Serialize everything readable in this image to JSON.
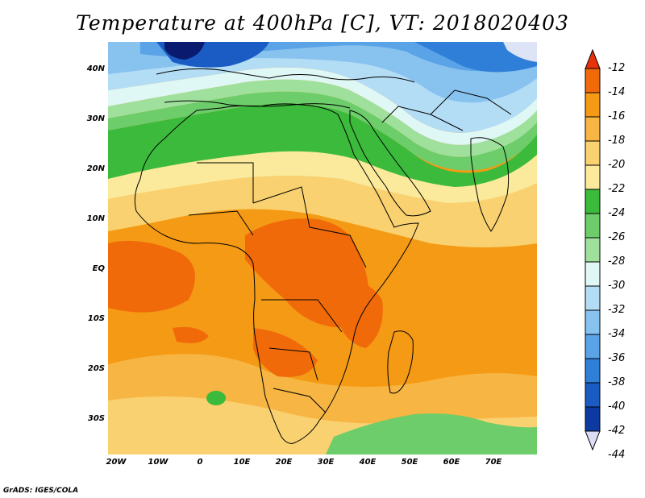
{
  "title": "Temperature at 400hPa [C], VT: 2018020403",
  "credit": "GrADS: IGES/COLA",
  "lat_ticks": [
    "40N",
    "30N",
    "20N",
    "10N",
    "EQ",
    "10S",
    "20S",
    "30S"
  ],
  "lon_ticks": [
    "20W",
    "10W",
    "0",
    "10E",
    "20E",
    "30E",
    "40E",
    "50E",
    "60E",
    "70E"
  ],
  "colorbar": {
    "labels": [
      "-12",
      "-14",
      "-16",
      "-18",
      "-20",
      "-22",
      "-24",
      "-26",
      "-28",
      "-30",
      "-32",
      "-34",
      "-36",
      "-38",
      "-40",
      "-42",
      "-44"
    ],
    "colors": [
      "#e8320a",
      "#f06a0a",
      "#f59a14",
      "#f7b543",
      "#f9d170",
      "#fbea9b",
      "#3cba3c",
      "#6ccd6a",
      "#9fe09d",
      "#dff7f5",
      "#b3dcf5",
      "#88c2ef",
      "#5aa3e6",
      "#2f7fd8",
      "#1a5cc4",
      "#0c3aa0",
      "#0a1a6e"
    ]
  },
  "colors": {
    "warm_deep": "#e8320a",
    "warm_orange": "#f06a0a",
    "warm_mid": "#f59a14",
    "warm_light": "#f7b543",
    "yellow": "#f9d170",
    "pale_yellow": "#fbea9b",
    "green_dark": "#3cba3c",
    "green_mid": "#6ccd6a",
    "green_light": "#9fe09d",
    "cyan_pale": "#dff7f5",
    "blue_light": "#b3dcf5",
    "blue_mid": "#5aa3e6",
    "blue_dark": "#1a5cc4",
    "navy": "#0a1a6e"
  }
}
